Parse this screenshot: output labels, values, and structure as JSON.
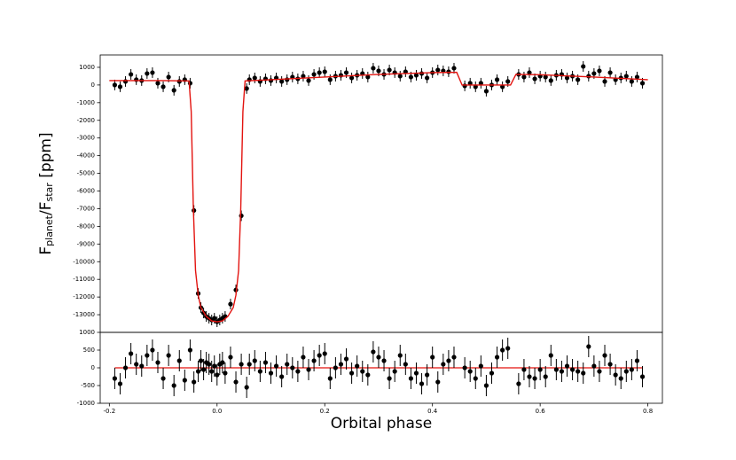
{
  "chart_data": [
    {
      "type": "errorbar",
      "ylabel": [
        "F",
        "planet",
        "/F",
        "star",
        " [ppm]"
      ],
      "xlim": [
        -0.217,
        0.827
      ],
      "ylim": [
        -14000,
        1700
      ],
      "yticks": [
        1000,
        0,
        -1000,
        -2000,
        -3000,
        -4000,
        -5000,
        -6000,
        -7000,
        -8000,
        -9000,
        -10000,
        -11000,
        -12000,
        -13000
      ],
      "x": [
        -0.19,
        -0.18,
        -0.17,
        -0.16,
        -0.15,
        -0.14,
        -0.13,
        -0.12,
        -0.11,
        -0.1,
        -0.09,
        -0.08,
        -0.07,
        -0.06,
        -0.05,
        -0.043,
        -0.035,
        -0.03,
        -0.025,
        -0.02,
        -0.015,
        -0.01,
        -0.005,
        0,
        0.005,
        0.01,
        0.015,
        0.025,
        0.035,
        0.045,
        0.055,
        0.06,
        0.07,
        0.08,
        0.09,
        0.1,
        0.11,
        0.12,
        0.13,
        0.14,
        0.15,
        0.16,
        0.17,
        0.18,
        0.19,
        0.2,
        0.21,
        0.22,
        0.23,
        0.24,
        0.25,
        0.26,
        0.27,
        0.28,
        0.29,
        0.3,
        0.31,
        0.32,
        0.33,
        0.34,
        0.35,
        0.36,
        0.37,
        0.38,
        0.39,
        0.4,
        0.41,
        0.42,
        0.43,
        0.44,
        0.46,
        0.47,
        0.48,
        0.49,
        0.5,
        0.51,
        0.52,
        0.53,
        0.54,
        0.56,
        0.57,
        0.58,
        0.59,
        0.6,
        0.61,
        0.62,
        0.63,
        0.64,
        0.65,
        0.66,
        0.67,
        0.68,
        0.69,
        0.7,
        0.71,
        0.72,
        0.73,
        0.74,
        0.75,
        0.76,
        0.77,
        0.78,
        0.79
      ],
      "values": [
        0,
        -100,
        200,
        600,
        300,
        250,
        650,
        700,
        100,
        -100,
        450,
        -300,
        200,
        300,
        100,
        -7100,
        -11800,
        -12600,
        -12900,
        -13100,
        -13200,
        -13300,
        -13200,
        -13400,
        -13300,
        -13200,
        -13100,
        -12400,
        -11600,
        -7400,
        -200,
        300,
        400,
        200,
        350,
        250,
        400,
        200,
        300,
        450,
        350,
        500,
        250,
        600,
        700,
        750,
        300,
        500,
        550,
        700,
        400,
        550,
        650,
        450,
        950,
        800,
        600,
        850,
        700,
        500,
        750,
        450,
        550,
        650,
        400,
        700,
        850,
        800,
        750,
        950,
        -50,
        100,
        -100,
        100,
        -350,
        0,
        300,
        -100,
        200,
        600,
        450,
        700,
        350,
        500,
        450,
        250,
        550,
        600,
        400,
        500,
        300,
        1050,
        500,
        650,
        800,
        200,
        700,
        300,
        400,
        500,
        200,
        450,
        100
      ],
      "yerr": 300,
      "color": "#000000",
      "model": {
        "color": "#e3130f",
        "x": [
          -0.2,
          -0.1,
          -0.052,
          -0.048,
          -0.044,
          -0.04,
          -0.035,
          -0.03,
          -0.02,
          -0.01,
          0,
          0.01,
          0.02,
          0.03,
          0.035,
          0.04,
          0.044,
          0.048,
          0.052,
          0.1,
          0.2,
          0.3,
          0.4,
          0.445,
          0.455,
          0.545,
          0.555,
          0.6,
          0.7,
          0.8
        ],
        "values": [
          250,
          250,
          230,
          -1500,
          -7000,
          -10500,
          -11900,
          -12600,
          -13100,
          -13350,
          -13400,
          -13350,
          -13100,
          -12600,
          -11900,
          -10500,
          -7000,
          -1500,
          230,
          300,
          450,
          600,
          700,
          720,
          0,
          0,
          600,
          580,
          450,
          300
        ]
      }
    },
    {
      "type": "errorbar",
      "xlabel": "Orbital phase",
      "xlim": [
        -0.217,
        0.827
      ],
      "ylim": [
        -1000,
        1000
      ],
      "xticks": [
        -0.2,
        {
          "value": 0,
          "label": "0.0"
        },
        0.2,
        0.4,
        0.6,
        0.8
      ],
      "yticks": [
        1000,
        500,
        0,
        -500,
        -1000
      ],
      "x": [
        -0.19,
        -0.18,
        -0.17,
        -0.16,
        -0.15,
        -0.14,
        -0.13,
        -0.12,
        -0.11,
        -0.1,
        -0.09,
        -0.08,
        -0.07,
        -0.06,
        -0.05,
        -0.043,
        -0.035,
        -0.03,
        -0.025,
        -0.02,
        -0.015,
        -0.01,
        -0.005,
        0,
        0.005,
        0.01,
        0.015,
        0.025,
        0.035,
        0.045,
        0.055,
        0.06,
        0.07,
        0.08,
        0.09,
        0.1,
        0.11,
        0.12,
        0.13,
        0.14,
        0.15,
        0.16,
        0.17,
        0.18,
        0.19,
        0.2,
        0.21,
        0.22,
        0.23,
        0.24,
        0.25,
        0.26,
        0.27,
        0.28,
        0.29,
        0.3,
        0.31,
        0.32,
        0.33,
        0.34,
        0.35,
        0.36,
        0.37,
        0.38,
        0.39,
        0.4,
        0.41,
        0.42,
        0.43,
        0.44,
        0.46,
        0.47,
        0.48,
        0.49,
        0.5,
        0.51,
        0.52,
        0.53,
        0.54,
        0.56,
        0.57,
        0.58,
        0.59,
        0.6,
        0.61,
        0.62,
        0.63,
        0.64,
        0.65,
        0.66,
        0.67,
        0.68,
        0.69,
        0.7,
        0.71,
        0.72,
        0.73,
        0.74,
        0.75,
        0.76,
        0.77,
        0.78,
        0.79
      ],
      "values": [
        -300,
        -450,
        0,
        400,
        100,
        50,
        350,
        500,
        150,
        -300,
        350,
        -500,
        200,
        -350,
        500,
        -400,
        -100,
        200,
        -50,
        150,
        100,
        -100,
        50,
        -200,
        100,
        150,
        -150,
        300,
        -400,
        100,
        -550,
        100,
        200,
        -100,
        150,
        -150,
        50,
        -250,
        100,
        0,
        -100,
        300,
        -50,
        200,
        350,
        400,
        -300,
        0,
        100,
        250,
        -150,
        50,
        -100,
        -200,
        450,
        300,
        200,
        -300,
        -100,
        350,
        100,
        -300,
        -150,
        -450,
        -200,
        300,
        -400,
        100,
        200,
        300,
        0,
        -100,
        -300,
        50,
        -500,
        -150,
        300,
        500,
        550,
        -450,
        -50,
        -250,
        -300,
        -50,
        -250,
        350,
        -50,
        -100,
        50,
        -50,
        -100,
        -150,
        600,
        50,
        -100,
        350,
        100,
        -200,
        -300,
        -100,
        -50,
        200,
        -250
      ],
      "yerr": 300,
      "color": "#000000",
      "hline": 0,
      "hline_color": "#e3130f"
    }
  ]
}
